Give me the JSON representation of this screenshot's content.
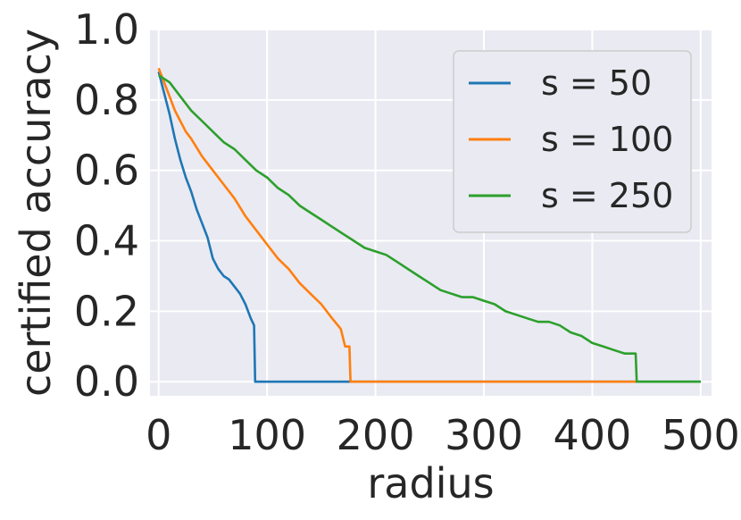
{
  "chart_data": {
    "type": "line",
    "xlabel": "radius",
    "ylabel": "certified accuracy",
    "xlim": [
      -8,
      510
    ],
    "ylim": [
      -0.04,
      1.0
    ],
    "xticks": [
      0,
      100,
      200,
      300,
      400,
      500
    ],
    "yticks": [
      0.0,
      0.2,
      0.4,
      0.6,
      0.8,
      1.0
    ],
    "xtick_labels": [
      "0",
      "100",
      "200",
      "300",
      "400",
      "500"
    ],
    "ytick_labels": [
      "0.0",
      "0.2",
      "0.4",
      "0.6",
      "0.8",
      "1.0"
    ],
    "grid": true,
    "background": "#eaeaf2",
    "legend_position": "top-right",
    "series": [
      {
        "name": "s = 50",
        "color": "#1f77b4",
        "points": [
          [
            0,
            0.88
          ],
          [
            5,
            0.82
          ],
          [
            10,
            0.76
          ],
          [
            15,
            0.69
          ],
          [
            20,
            0.63
          ],
          [
            25,
            0.58
          ],
          [
            30,
            0.54
          ],
          [
            35,
            0.49
          ],
          [
            40,
            0.45
          ],
          [
            45,
            0.41
          ],
          [
            50,
            0.35
          ],
          [
            55,
            0.32
          ],
          [
            60,
            0.3
          ],
          [
            65,
            0.29
          ],
          [
            70,
            0.27
          ],
          [
            75,
            0.25
          ],
          [
            80,
            0.22
          ],
          [
            85,
            0.18
          ],
          [
            88,
            0.16
          ],
          [
            89,
            0.0
          ],
          [
            500,
            0.0
          ]
        ]
      },
      {
        "name": "s = 100",
        "color": "#ff7f0e",
        "points": [
          [
            0,
            0.89
          ],
          [
            5,
            0.85
          ],
          [
            10,
            0.81
          ],
          [
            15,
            0.77
          ],
          [
            20,
            0.74
          ],
          [
            25,
            0.71
          ],
          [
            30,
            0.69
          ],
          [
            40,
            0.64
          ],
          [
            50,
            0.6
          ],
          [
            60,
            0.56
          ],
          [
            70,
            0.52
          ],
          [
            80,
            0.47
          ],
          [
            90,
            0.43
          ],
          [
            100,
            0.39
          ],
          [
            110,
            0.35
          ],
          [
            120,
            0.32
          ],
          [
            130,
            0.28
          ],
          [
            140,
            0.25
          ],
          [
            150,
            0.22
          ],
          [
            160,
            0.18
          ],
          [
            168,
            0.15
          ],
          [
            172,
            0.1
          ],
          [
            176,
            0.1
          ],
          [
            177,
            0.0
          ],
          [
            440,
            0.0
          ]
        ]
      },
      {
        "name": "s = 250",
        "color": "#2ca02c",
        "points": [
          [
            0,
            0.87
          ],
          [
            10,
            0.85
          ],
          [
            20,
            0.81
          ],
          [
            30,
            0.77
          ],
          [
            40,
            0.74
          ],
          [
            50,
            0.71
          ],
          [
            60,
            0.68
          ],
          [
            70,
            0.66
          ],
          [
            80,
            0.63
          ],
          [
            90,
            0.6
          ],
          [
            100,
            0.58
          ],
          [
            110,
            0.55
          ],
          [
            120,
            0.53
          ],
          [
            130,
            0.5
          ],
          [
            140,
            0.48
          ],
          [
            150,
            0.46
          ],
          [
            160,
            0.44
          ],
          [
            170,
            0.42
          ],
          [
            180,
            0.4
          ],
          [
            190,
            0.38
          ],
          [
            200,
            0.37
          ],
          [
            210,
            0.36
          ],
          [
            220,
            0.34
          ],
          [
            230,
            0.32
          ],
          [
            240,
            0.3
          ],
          [
            250,
            0.28
          ],
          [
            260,
            0.26
          ],
          [
            270,
            0.25
          ],
          [
            280,
            0.24
          ],
          [
            290,
            0.24
          ],
          [
            300,
            0.23
          ],
          [
            310,
            0.22
          ],
          [
            320,
            0.2
          ],
          [
            330,
            0.19
          ],
          [
            340,
            0.18
          ],
          [
            350,
            0.17
          ],
          [
            360,
            0.17
          ],
          [
            370,
            0.16
          ],
          [
            380,
            0.14
          ],
          [
            390,
            0.13
          ],
          [
            400,
            0.11
          ],
          [
            410,
            0.1
          ],
          [
            420,
            0.09
          ],
          [
            430,
            0.08
          ],
          [
            440,
            0.08
          ],
          [
            441,
            0.0
          ],
          [
            500,
            0.0
          ]
        ]
      }
    ]
  }
}
